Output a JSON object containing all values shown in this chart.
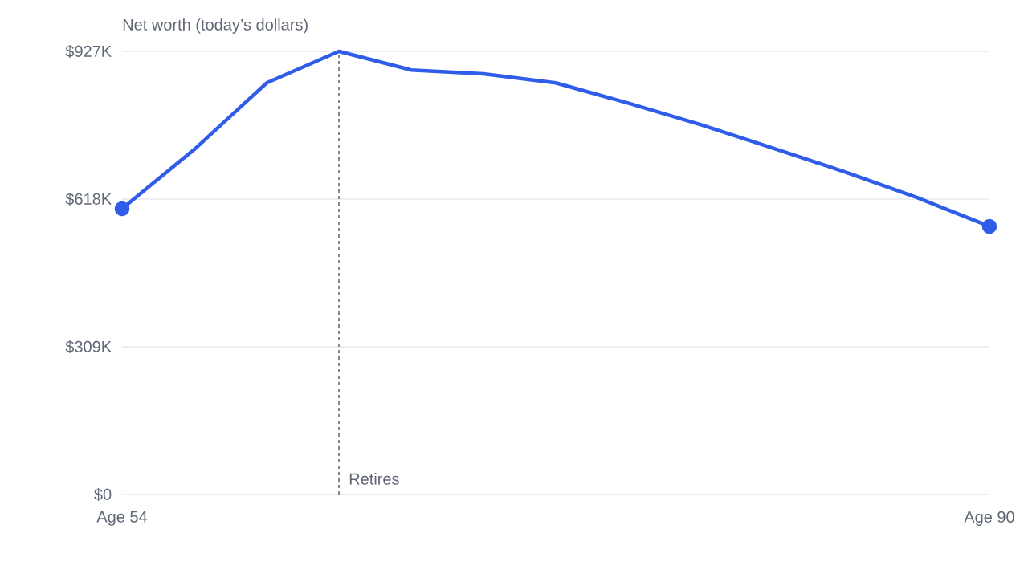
{
  "chart_data": {
    "type": "line",
    "title": "Net worth (today’s dollars)",
    "categories": [
      "Age 54",
      null,
      null,
      null,
      null,
      null,
      null,
      null,
      null,
      null,
      null,
      null,
      "Age 90"
    ],
    "series": [
      {
        "color": "#2f5ce9",
        "values": [
          598000,
          722000,
          861000,
          927000,
          888000,
          880000,
          861000,
          819000,
          774000,
          725000,
          675000,
          621000,
          561000
        ]
      }
    ],
    "ylim": [
      0,
      927000
    ],
    "yticks": [
      {
        "value": 0,
        "label": "$0"
      },
      {
        "value": 309000,
        "label": "$309K"
      },
      {
        "value": 618000,
        "label": "$618K"
      },
      {
        "value": 927000,
        "label": "$927K"
      }
    ],
    "grid": "y",
    "line_style": "solid",
    "annotations": [
      "Retires"
    ]
  }
}
